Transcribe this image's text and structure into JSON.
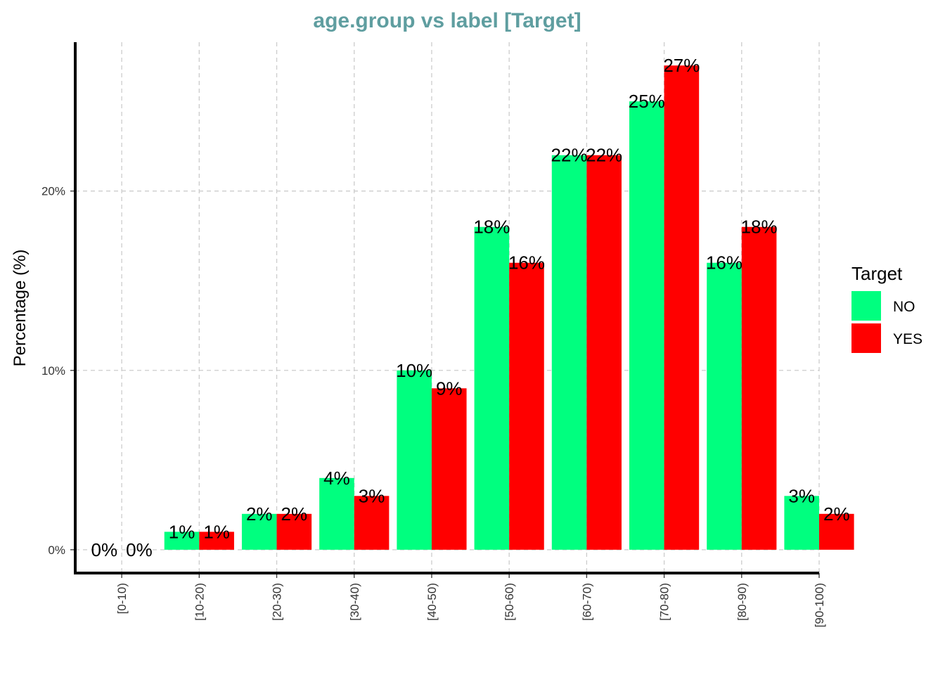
{
  "chart_data": {
    "type": "bar",
    "title": "age.group vs label [Target]",
    "xlabel": "",
    "ylabel": "Percentage (%)",
    "categories": [
      "[0-10)",
      "[10-20)",
      "[20-30)",
      "[30-40)",
      "[40-50)",
      "[50-60)",
      "[60-70)",
      "[70-80)",
      "[80-90)",
      "[90-100)"
    ],
    "series": [
      {
        "name": "NO",
        "color": "#00ff7f",
        "values": [
          0,
          1,
          2,
          4,
          10,
          18,
          22,
          25,
          16,
          3
        ],
        "labels": [
          "0%",
          "1%",
          "2%",
          "4%",
          "10%",
          "18%",
          "22%",
          "25%",
          "16%",
          "3%"
        ]
      },
      {
        "name": "YES",
        "color": "#ff0000",
        "values": [
          0,
          1,
          2,
          3,
          9,
          16,
          22,
          27,
          18,
          2
        ],
        "labels": [
          "0%",
          "1%",
          "2%",
          "3%",
          "9%",
          "16%",
          "22%",
          "27%",
          "18%",
          "2%"
        ]
      }
    ],
    "yticks": [
      0,
      10,
      20
    ],
    "ytick_labels": [
      "0%",
      "10%",
      "20%"
    ],
    "ylim": [
      -1.3,
      28.3
    ],
    "grid": true,
    "legend": {
      "title": "Target",
      "position": "right"
    }
  }
}
